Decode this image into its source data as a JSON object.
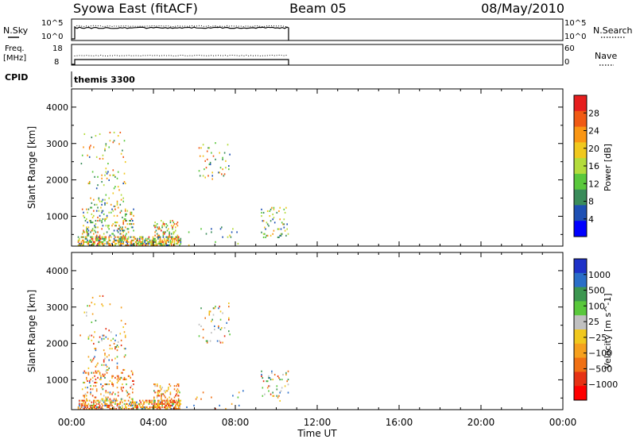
{
  "header": {
    "site": "Syowa East (fitACF)",
    "beam": "Beam 05",
    "date": "08/May/2010"
  },
  "panels": {
    "nsky_label": "N.Sky",
    "nsky_ticks": [
      "10^5",
      "10^0"
    ],
    "nsearch_label": "N.Search",
    "freq_label": "Freq.",
    "freq_unit": "[MHz]",
    "freq_ticks": [
      "18",
      "8"
    ],
    "nave_label": "Nave",
    "nave_ticks": [
      "60",
      "0"
    ],
    "cpid_label": "CPID",
    "cpid_value": "themis 3300",
    "active_until_hours": 10.6
  },
  "colors": {
    "power": [
      "#0000ff",
      "#1e50b4",
      "#3a8c5a",
      "#5ac83c",
      "#b4dc3c",
      "#f0c81e",
      "#fa9614",
      "#f05a14",
      "#e61e1e"
    ],
    "velocity": [
      "#1e32c8",
      "#2a6ec8",
      "#3c9650",
      "#5ac83c",
      "#c0c0c0",
      "#f0c81e",
      "#f5a01e",
      "#f07014",
      "#e63214",
      "#ff0000"
    ]
  },
  "chart_data": [
    {
      "type": "heatmap",
      "name": "power",
      "xlabel": "Time UT",
      "ylabel": "Slant Range [km]",
      "x_ticks": [
        "00:00",
        "04:00",
        "08:00",
        "12:00",
        "16:00",
        "20:00",
        "00:00"
      ],
      "xlim_hours": [
        0,
        24
      ],
      "y_ticks": [
        "4000",
        "3000",
        "2000",
        "1000"
      ],
      "ylim_km": [
        180,
        4500
      ],
      "colorbar_label": "Power [dB]",
      "colorbar_ticks": [
        "28",
        "24",
        "20",
        "16",
        "12",
        "8",
        "4"
      ],
      "colorbar_range": [
        0,
        32
      ],
      "clusters": [
        {
          "t0": 0.3,
          "t1": 5.3,
          "r0": 180,
          "r1": 450,
          "density": 0.55,
          "vmin": 4,
          "vmax": 30
        },
        {
          "t0": 0.5,
          "t1": 3.0,
          "r0": 450,
          "r1": 1250,
          "density": 0.18,
          "vmin": 4,
          "vmax": 28
        },
        {
          "t0": 0.8,
          "t1": 2.6,
          "r0": 1250,
          "r1": 2200,
          "density": 0.08,
          "vmin": 4,
          "vmax": 24
        },
        {
          "t0": 0.4,
          "t1": 2.6,
          "r0": 2200,
          "r1": 3300,
          "density": 0.03,
          "vmin": 4,
          "vmax": 28
        },
        {
          "t0": 4.0,
          "t1": 5.2,
          "r0": 180,
          "r1": 900,
          "density": 0.25,
          "vmin": 8,
          "vmax": 30
        },
        {
          "t0": 6.2,
          "t1": 7.7,
          "r0": 2000,
          "r1": 3100,
          "density": 0.06,
          "vmin": 4,
          "vmax": 28
        },
        {
          "t0": 9.2,
          "t1": 10.6,
          "r0": 400,
          "r1": 1250,
          "density": 0.1,
          "vmin": 4,
          "vmax": 24
        },
        {
          "t0": 5.0,
          "t1": 8.5,
          "r0": 180,
          "r1": 700,
          "density": 0.02,
          "vmin": 4,
          "vmax": 20
        }
      ]
    },
    {
      "type": "heatmap",
      "name": "velocity",
      "xlabel": "Time UT",
      "ylabel": "Slant Range [km]",
      "x_ticks": [
        "00:00",
        "04:00",
        "08:00",
        "12:00",
        "16:00",
        "20:00",
        "00:00"
      ],
      "xlim_hours": [
        0,
        24
      ],
      "y_ticks": [
        "4000",
        "3000",
        "2000",
        "1000"
      ],
      "ylim_km": [
        180,
        4500
      ],
      "colorbar_label": "Velocity [m s^-1]",
      "colorbar_ticks": [
        "1000",
        "500",
        "100",
        "25",
        "−25",
        "−100",
        "−500",
        "−1000"
      ],
      "clusters": [
        {
          "t0": 0.3,
          "t1": 5.3,
          "r0": 180,
          "r1": 450,
          "density": 0.55,
          "bias": 0.75
        },
        {
          "t0": 0.5,
          "t1": 3.0,
          "r0": 450,
          "r1": 1250,
          "density": 0.18,
          "bias": 0.8
        },
        {
          "t0": 0.8,
          "t1": 2.6,
          "r0": 1250,
          "r1": 2200,
          "density": 0.08,
          "bias": 0.7
        },
        {
          "t0": 0.4,
          "t1": 2.6,
          "r0": 2200,
          "r1": 3300,
          "density": 0.03,
          "bias": 0.6
        },
        {
          "t0": 4.0,
          "t1": 5.2,
          "r0": 180,
          "r1": 900,
          "density": 0.25,
          "bias": 0.85
        },
        {
          "t0": 6.2,
          "t1": 7.7,
          "r0": 2000,
          "r1": 3100,
          "density": 0.06,
          "bias": 0.5
        },
        {
          "t0": 9.2,
          "t1": 10.6,
          "r0": 400,
          "r1": 1250,
          "density": 0.1,
          "bias": 0.3
        },
        {
          "t0": 5.0,
          "t1": 8.5,
          "r0": 180,
          "r1": 700,
          "density": 0.02,
          "bias": 0.6
        }
      ]
    }
  ]
}
